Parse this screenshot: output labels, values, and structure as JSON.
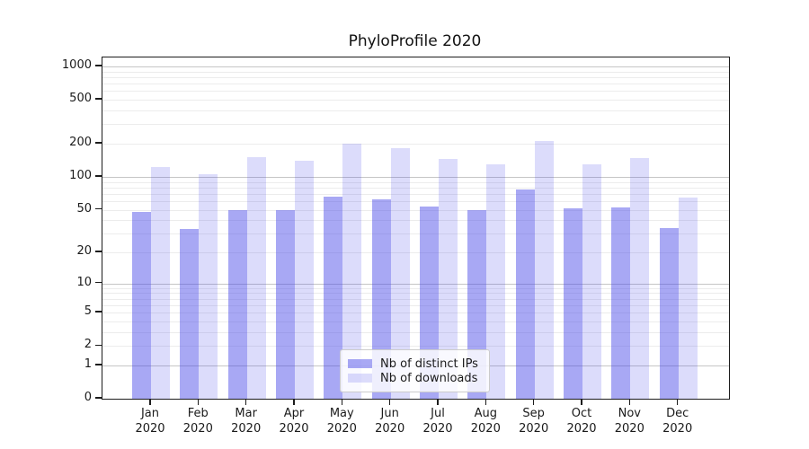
{
  "figure": {
    "background": "#ffffff",
    "axis_color": "#1c1c1c",
    "text_color": "#1a1a1a"
  },
  "chart_data": {
    "type": "bar",
    "title": "PhyloProfile 2020",
    "year": "2020",
    "months": [
      "Jan",
      "Feb",
      "Mar",
      "Apr",
      "May",
      "Jun",
      "Jul",
      "Aug",
      "Sep",
      "Oct",
      "Nov",
      "Dec"
    ],
    "categories": [
      "Jan 2020",
      "Feb 2020",
      "Mar 2020",
      "Apr 2020",
      "May 2020",
      "Jun 2020",
      "Jul 2020",
      "Aug 2020",
      "Sep 2020",
      "Oct 2020",
      "Nov 2020",
      "Dec 2020"
    ],
    "series": [
      {
        "name": "Nb of distinct IPs",
        "color": "rgba(70,70,232,0.47)",
        "values": [
          48,
          33,
          50,
          50,
          66,
          62,
          53,
          50,
          77,
          51,
          52,
          34
        ]
      },
      {
        "name": "Nb of downloads",
        "color": "rgba(70,70,232,0.19)",
        "values": [
          122,
          105,
          152,
          140,
          200,
          182,
          145,
          131,
          210,
          131,
          147,
          65
        ]
      }
    ],
    "xlabel": "",
    "ylabel": "",
    "yscale": "log1p",
    "ylim": [
      0,
      1200
    ],
    "yticks": [
      1000,
      500,
      200,
      100,
      50,
      20,
      10,
      5,
      2,
      1,
      0
    ],
    "grid": {
      "major_values": [
        1,
        10,
        100,
        1000
      ],
      "minor_color": "#ececec",
      "major_color": "#c6c6c6",
      "minor_bases": [
        1,
        10,
        100
      ],
      "minor_multipliers": [
        2,
        3,
        4,
        5,
        6,
        7,
        8,
        9
      ]
    },
    "legend_position": "lower center"
  },
  "legend": {
    "entries": [
      {
        "label": "Nb of distinct IPs"
      },
      {
        "label": "Nb of downloads"
      }
    ]
  }
}
